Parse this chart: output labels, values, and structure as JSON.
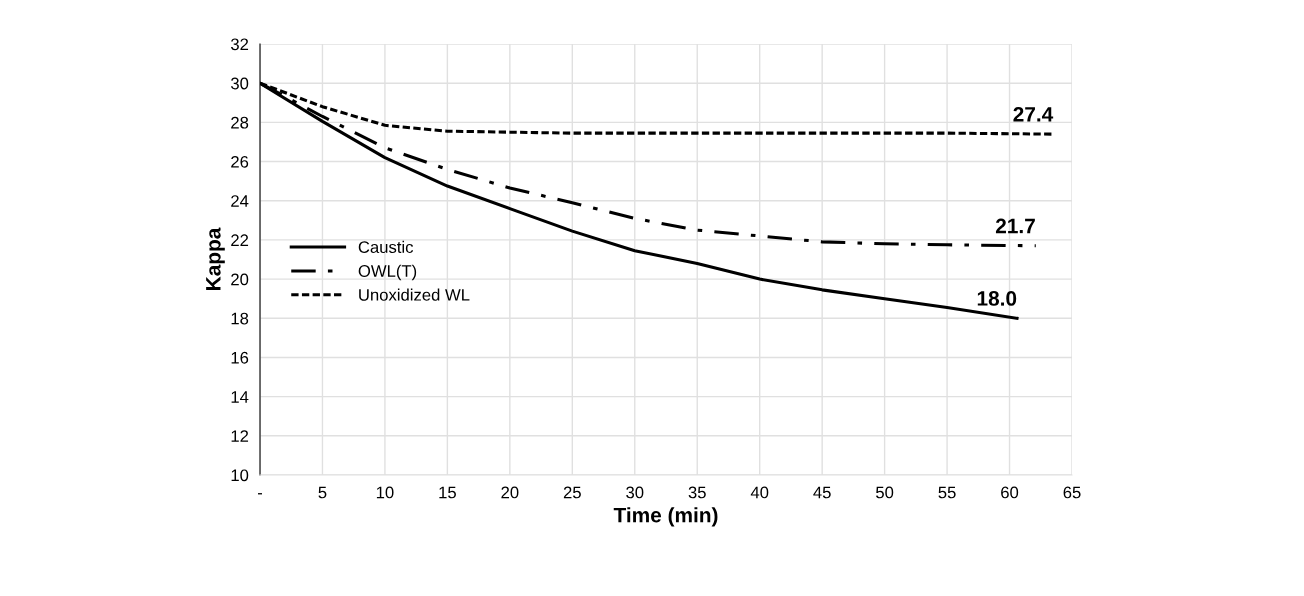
{
  "chart_data": {
    "type": "line",
    "xlabel": "Time (min)",
    "ylabel": "Kappa",
    "xlim": [
      0,
      65
    ],
    "xticks": [
      {
        "value": 0,
        "label": "-"
      },
      5,
      10,
      15,
      20,
      25,
      30,
      35,
      40,
      45,
      50,
      55,
      60,
      65
    ],
    "ylim": [
      10,
      32
    ],
    "yticks": [
      10,
      12,
      14,
      16,
      18,
      20,
      22,
      24,
      26,
      28,
      30,
      32
    ],
    "grid": true,
    "legend": "left",
    "marker": "none",
    "series": [
      {
        "name": "Caustic",
        "color": "#000000",
        "line_style": "solid",
        "x": [
          0,
          5,
          10,
          15,
          20,
          25,
          30,
          35,
          40,
          45,
          50,
          55,
          60.6
        ],
        "values": [
          30,
          28.05,
          26.2,
          24.75,
          23.6,
          22.45,
          21.45,
          20.8,
          20.0,
          19.45,
          19.0,
          18.55,
          18.0
        ]
      },
      {
        "name": "OWL(T)",
        "color": "#000000",
        "line_style": "dashdot",
        "x": [
          0,
          5,
          10,
          15,
          20,
          25,
          30,
          35,
          40,
          45,
          50,
          55,
          62.1
        ],
        "values": [
          30,
          28.3,
          26.7,
          25.6,
          24.65,
          23.9,
          23.1,
          22.5,
          22.2,
          21.9,
          21.8,
          21.75,
          21.7
        ]
      },
      {
        "name": "Unoxidized WL",
        "color": "#000000",
        "line_style": "dashed",
        "x": [
          0,
          5,
          10,
          15,
          20,
          25,
          30,
          35,
          40,
          45,
          50,
          55,
          63.5
        ],
        "values": [
          30,
          28.8,
          27.85,
          27.55,
          27.5,
          27.45,
          27.45,
          27.45,
          27.45,
          27.45,
          27.45,
          27.45,
          27.4
        ]
      }
    ],
    "annotations": [
      {
        "text": "27.4",
        "x": 63.5,
        "y": 27.4
      },
      {
        "text": "21.7",
        "x": 62.1,
        "y": 21.7
      },
      {
        "text": "18.0",
        "x": 60.6,
        "y": 18.0
      }
    ]
  }
}
